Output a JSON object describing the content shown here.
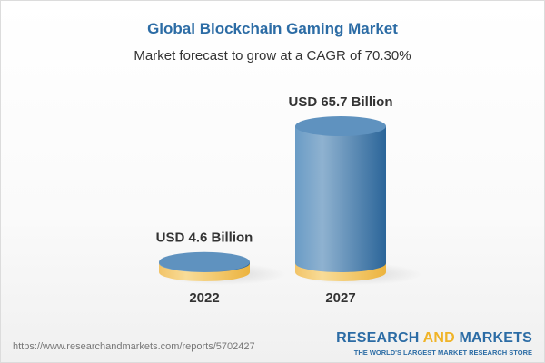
{
  "title": "Global Blockchain Gaming Market",
  "subtitle": "Market forecast to grow at a CAGR of 70.30%",
  "chart_data": {
    "type": "bar",
    "style": "3d-cylinder",
    "categories": [
      "2022",
      "2027"
    ],
    "values": [
      4.6,
      65.7
    ],
    "data_labels": [
      "USD 4.6 Billion",
      "USD 65.7 Billion"
    ],
    "unit": "USD Billion",
    "colors": {
      "base": "#f3c465",
      "bar": "#5b8fbc"
    },
    "grid": false
  },
  "footer": {
    "url": "https://www.researchandmarkets.com/reports/5702427",
    "logo_part1": "RESEARCH ",
    "logo_part2": "AND",
    "logo_part3": " MARKETS",
    "tagline": "THE WORLD'S LARGEST MARKET RESEARCH STORE"
  }
}
